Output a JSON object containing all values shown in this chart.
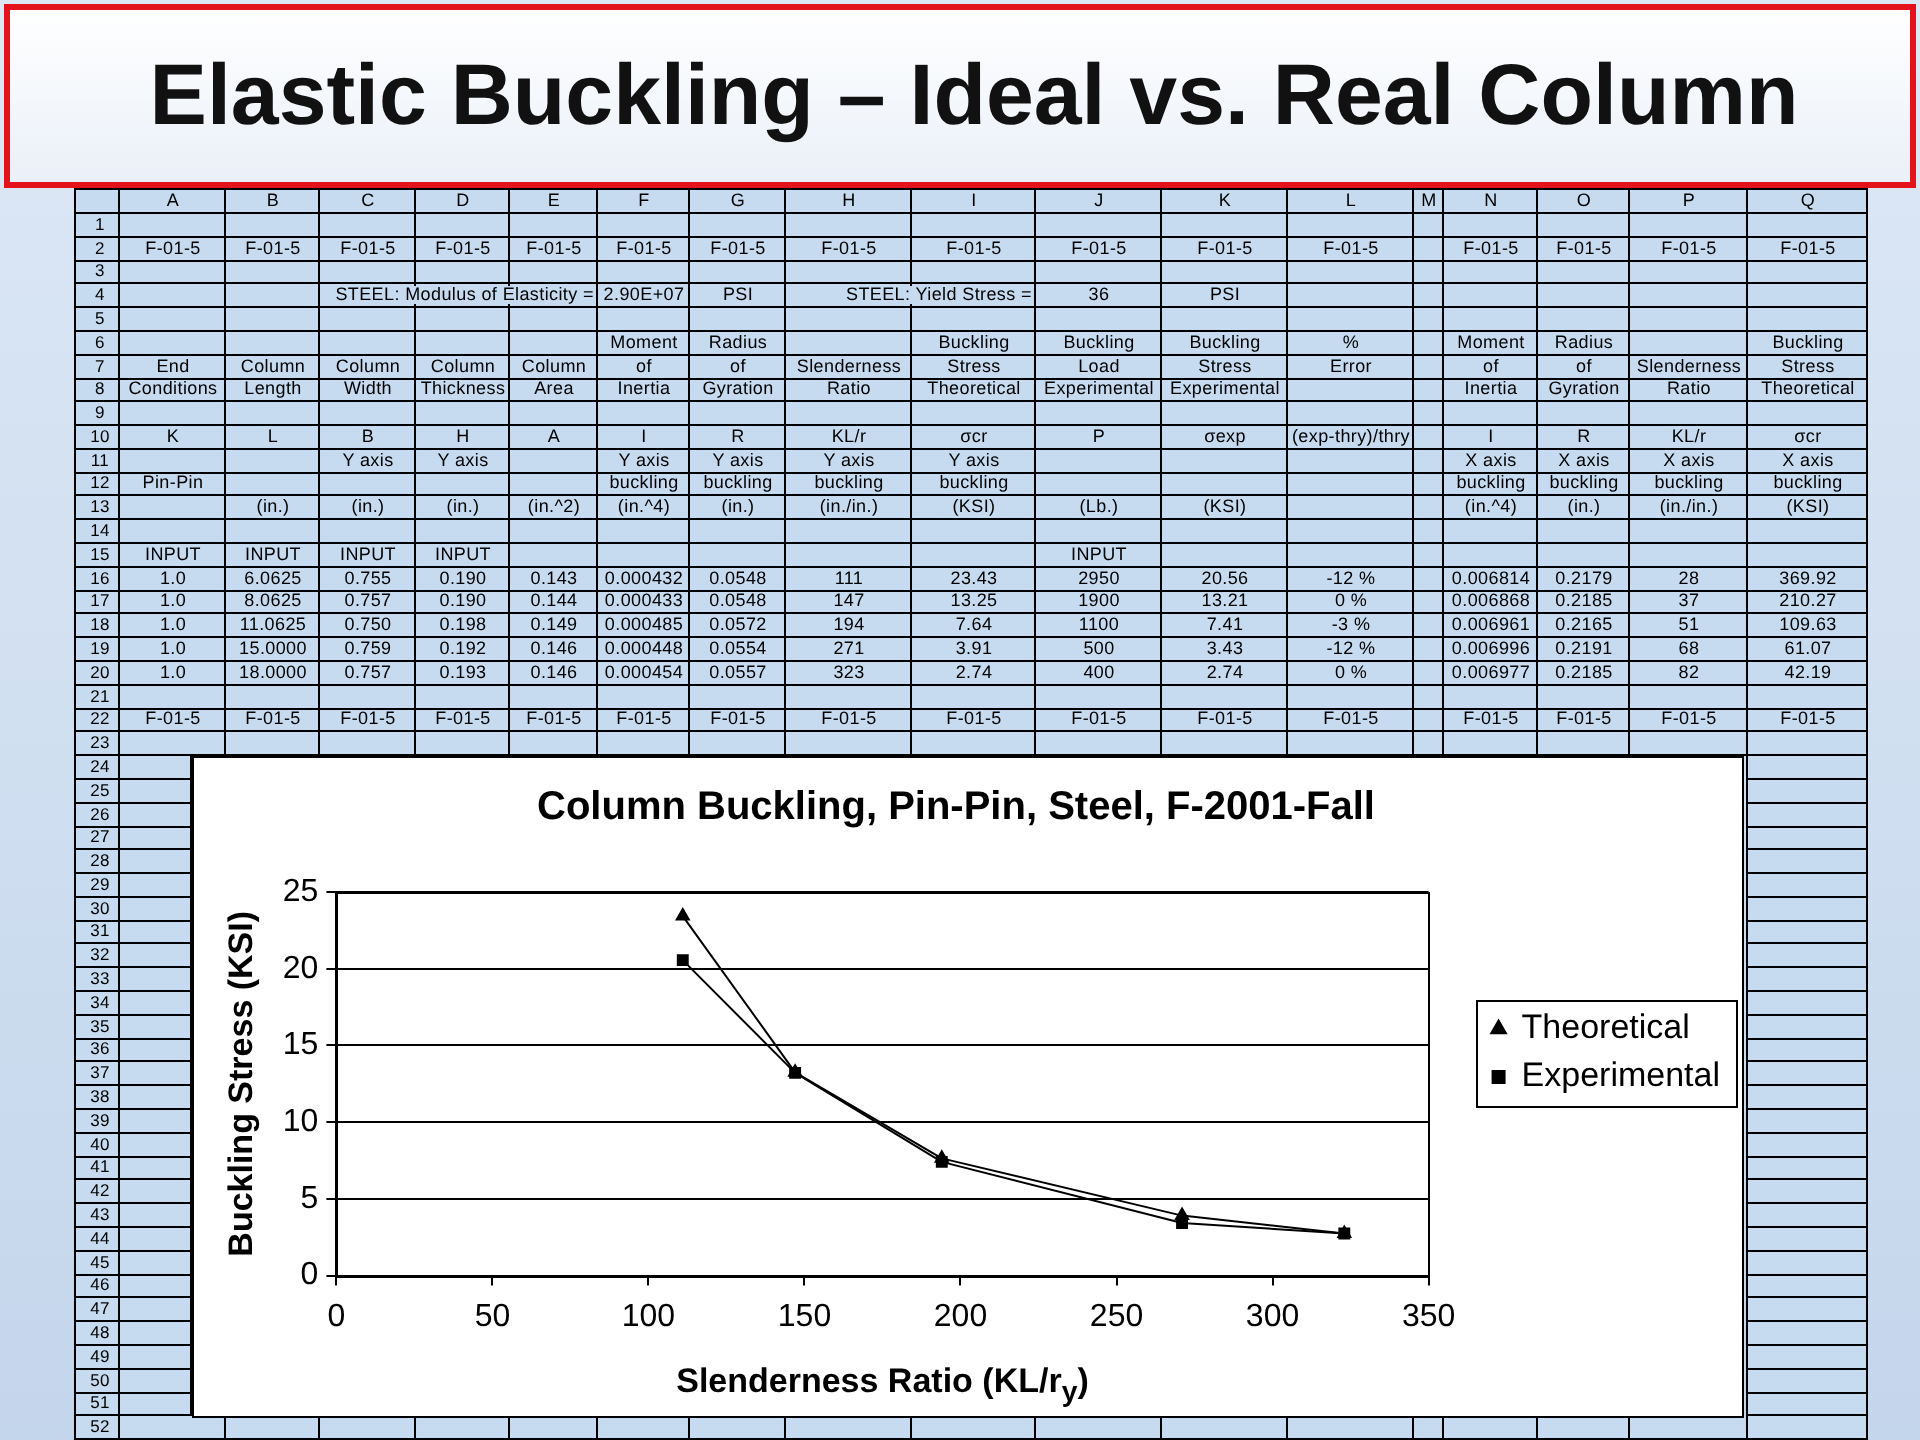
{
  "chart_data": [
    {
      "type": "other",
      "title": "Elastic Buckling – Ideal vs. Real Column",
      "categories": [
        null,
        "A",
        "B",
        "C",
        "D",
        "E",
        "F",
        "G",
        "H",
        "I",
        "J",
        "K",
        "L",
        "M",
        "N",
        "O",
        "P",
        "Q"
      ],
      "cell_labels": [
        [
          "1",
          null,
          null,
          null,
          null,
          null,
          null,
          null,
          null,
          null,
          null,
          null,
          null,
          null,
          null,
          null,
          null,
          null
        ],
        [
          "2",
          "F-01-5",
          "F-01-5",
          "F-01-5",
          "F-01-5",
          "F-01-5",
          "F-01-5",
          "F-01-5",
          "F-01-5",
          "F-01-5",
          "F-01-5",
          "F-01-5",
          "F-01-5",
          null,
          "F-01-5",
          "F-01-5",
          "F-01-5",
          "F-01-5"
        ],
        [
          "3",
          null,
          null,
          null,
          null,
          null,
          null,
          null,
          null,
          null,
          null,
          null,
          null,
          null,
          null,
          null,
          null,
          null
        ],
        [
          "4",
          null,
          null,
          null,
          null,
          "STEEL: Modulus of Elasticity =",
          "2.90E+07",
          "PSI",
          null,
          "STEEL: Yield Stress =",
          "36",
          "PSI",
          null,
          null,
          null,
          null,
          null,
          null
        ],
        [
          "5",
          null,
          null,
          null,
          null,
          null,
          null,
          null,
          null,
          null,
          null,
          null,
          null,
          null,
          null,
          null,
          null,
          null
        ],
        [
          "6",
          null,
          null,
          null,
          null,
          null,
          "Moment",
          "Radius",
          null,
          "Buckling",
          "Buckling",
          "Buckling",
          "%",
          null,
          "Moment",
          "Radius",
          null,
          "Buckling"
        ],
        [
          "7",
          "End",
          "Column",
          "Column",
          "Column",
          "Column",
          "of",
          "of",
          "Slenderness",
          "Stress",
          "Load",
          "Stress",
          "Error",
          null,
          "of",
          "of",
          "Slenderness",
          "Stress"
        ],
        [
          "8",
          "Conditions",
          "Length",
          "Width",
          "Thickness",
          "Area",
          "Inertia",
          "Gyration",
          "Ratio",
          "Theoretical",
          "Experimental",
          "Experimental",
          null,
          null,
          "Inertia",
          "Gyration",
          "Ratio",
          "Theoretical"
        ],
        [
          "9",
          null,
          null,
          null,
          null,
          null,
          null,
          null,
          null,
          null,
          null,
          null,
          null,
          null,
          null,
          null,
          null,
          null
        ],
        [
          "10",
          "K",
          "L",
          "B",
          "H",
          "A",
          "I",
          "R",
          "KL/r",
          "σcr",
          "P",
          "σexp",
          "(exp-thry)/thry",
          null,
          "I",
          "R",
          "KL/r",
          "σcr"
        ],
        [
          "11",
          null,
          null,
          "Y axis",
          "Y axis",
          null,
          "Y axis",
          "Y axis",
          "Y axis",
          "Y axis",
          null,
          null,
          null,
          null,
          "X axis",
          "X axis",
          "X axis",
          "X axis"
        ],
        [
          "12",
          "Pin-Pin",
          null,
          null,
          null,
          null,
          "buckling",
          "buckling",
          "buckling",
          "buckling",
          null,
          null,
          null,
          null,
          "buckling",
          "buckling",
          "buckling",
          "buckling"
        ],
        [
          "13",
          null,
          "(in.)",
          "(in.)",
          "(in.)",
          "(in.^2)",
          "(in.^4)",
          "(in.)",
          "(in./in.)",
          "(KSI)",
          "(Lb.)",
          "(KSI)",
          null,
          null,
          "(in.^4)",
          "(in.)",
          "(in./in.)",
          "(KSI)"
        ],
        [
          "14",
          null,
          null,
          null,
          null,
          null,
          null,
          null,
          null,
          null,
          null,
          null,
          null,
          null,
          null,
          null,
          null,
          null
        ],
        [
          "15",
          "INPUT",
          "INPUT",
          "INPUT",
          "INPUT",
          null,
          null,
          null,
          null,
          null,
          "INPUT",
          null,
          null,
          null,
          null,
          null,
          null,
          null
        ],
        [
          "16",
          "1.0",
          "6.0625",
          "0.755",
          "0.190",
          "0.143",
          "0.000432",
          "0.0548",
          "111",
          "23.43",
          "2950",
          "20.56",
          "-12 %",
          null,
          "0.006814",
          "0.2179",
          "28",
          "369.92"
        ],
        [
          "17",
          "1.0",
          "8.0625",
          "0.757",
          "0.190",
          "0.144",
          "0.000433",
          "0.0548",
          "147",
          "13.25",
          "1900",
          "13.21",
          "0 %",
          null,
          "0.006868",
          "0.2185",
          "37",
          "210.27"
        ],
        [
          "18",
          "1.0",
          "11.0625",
          "0.750",
          "0.198",
          "0.149",
          "0.000485",
          "0.0572",
          "194",
          "7.64",
          "1100",
          "7.41",
          "-3 %",
          null,
          "0.006961",
          "0.2165",
          "51",
          "109.63"
        ],
        [
          "19",
          "1.0",
          "15.0000",
          "0.759",
          "0.192",
          "0.146",
          "0.000448",
          "0.0554",
          "271",
          "3.91",
          "500",
          "3.43",
          "-12 %",
          null,
          "0.006996",
          "0.2191",
          "68",
          "61.07"
        ],
        [
          "20",
          "1.0",
          "18.0000",
          "0.757",
          "0.193",
          "0.146",
          "0.000454",
          "0.0557",
          "323",
          "2.74",
          "400",
          "2.74",
          "0 %",
          null,
          "0.006977",
          "0.2185",
          "82",
          "42.19"
        ],
        [
          "21",
          null,
          null,
          null,
          null,
          null,
          null,
          null,
          null,
          null,
          null,
          null,
          null,
          null,
          null,
          null,
          null,
          null
        ],
        [
          "22",
          "F-01-5",
          "F-01-5",
          "F-01-5",
          "F-01-5",
          "F-01-5",
          "F-01-5",
          "F-01-5",
          "F-01-5",
          "F-01-5",
          "F-01-5",
          "F-01-5",
          "F-01-5",
          null,
          "F-01-5",
          "F-01-5",
          "F-01-5",
          "F-01-5"
        ],
        [
          "23",
          null,
          null,
          null,
          null,
          null,
          null,
          null,
          null,
          null,
          null,
          null,
          null,
          null,
          null,
          null,
          null,
          null
        ],
        [
          "24",
          null,
          null,
          null,
          null,
          null,
          null,
          null,
          null,
          null,
          null,
          null,
          null,
          null,
          null,
          null,
          null,
          null
        ],
        [
          "25",
          null,
          null,
          null,
          null,
          null,
          null,
          null,
          null,
          null,
          null,
          null,
          null,
          null,
          null,
          null,
          null,
          null
        ],
        [
          "26",
          null,
          null,
          null,
          null,
          null,
          null,
          null,
          null,
          null,
          null,
          null,
          null,
          null,
          null,
          null,
          null,
          null
        ],
        [
          "27",
          null,
          null,
          null,
          null,
          null,
          null,
          null,
          null,
          null,
          null,
          null,
          null,
          null,
          null,
          null,
          null,
          null
        ],
        [
          "28",
          null,
          null,
          null,
          null,
          null,
          null,
          null,
          null,
          null,
          null,
          null,
          null,
          null,
          null,
          null,
          null,
          null
        ],
        [
          "29",
          null,
          null,
          null,
          null,
          null,
          null,
          null,
          null,
          null,
          null,
          null,
          null,
          null,
          null,
          null,
          null,
          null
        ],
        [
          "30",
          null,
          null,
          null,
          null,
          null,
          null,
          null,
          null,
          null,
          null,
          null,
          null,
          null,
          null,
          null,
          null,
          null
        ],
        [
          "31",
          null,
          null,
          null,
          null,
          null,
          null,
          null,
          null,
          null,
          null,
          null,
          null,
          null,
          null,
          null,
          null,
          null
        ],
        [
          "32",
          null,
          null,
          null,
          null,
          null,
          null,
          null,
          null,
          null,
          null,
          null,
          null,
          null,
          null,
          null,
          null,
          null
        ],
        [
          "33",
          null,
          null,
          null,
          null,
          null,
          null,
          null,
          null,
          null,
          null,
          null,
          null,
          null,
          null,
          null,
          null,
          null
        ],
        [
          "34",
          null,
          null,
          null,
          null,
          null,
          null,
          null,
          null,
          null,
          null,
          null,
          null,
          null,
          null,
          null,
          null,
          null
        ],
        [
          "35",
          null,
          null,
          null,
          null,
          null,
          null,
          null,
          null,
          null,
          null,
          null,
          null,
          null,
          null,
          null,
          null,
          null
        ],
        [
          "36",
          null,
          null,
          null,
          null,
          null,
          null,
          null,
          null,
          null,
          null,
          null,
          null,
          null,
          null,
          null,
          null,
          null
        ],
        [
          "37",
          null,
          null,
          null,
          null,
          null,
          null,
          null,
          null,
          null,
          null,
          null,
          null,
          null,
          null,
          null,
          null,
          null
        ],
        [
          "38",
          null,
          null,
          null,
          null,
          null,
          null,
          null,
          null,
          null,
          null,
          null,
          null,
          null,
          null,
          null,
          null,
          null
        ],
        [
          "39",
          null,
          null,
          null,
          null,
          null,
          null,
          null,
          null,
          null,
          null,
          null,
          null,
          null,
          null,
          null,
          null,
          null
        ],
        [
          "40",
          null,
          null,
          null,
          null,
          null,
          null,
          null,
          null,
          null,
          null,
          null,
          null,
          null,
          null,
          null,
          null,
          null
        ],
        [
          "41",
          null,
          null,
          null,
          null,
          null,
          null,
          null,
          null,
          null,
          null,
          null,
          null,
          null,
          null,
          null,
          null,
          null
        ],
        [
          "42",
          null,
          null,
          null,
          null,
          null,
          null,
          null,
          null,
          null,
          null,
          null,
          null,
          null,
          null,
          null,
          null,
          null
        ],
        [
          "43",
          null,
          null,
          null,
          null,
          null,
          null,
          null,
          null,
          null,
          null,
          null,
          null,
          null,
          null,
          null,
          null,
          null
        ],
        [
          "44",
          null,
          null,
          null,
          null,
          null,
          null,
          null,
          null,
          null,
          null,
          null,
          null,
          null,
          null,
          null,
          null,
          null
        ],
        [
          "45",
          null,
          null,
          null,
          null,
          null,
          null,
          null,
          null,
          null,
          null,
          null,
          null,
          null,
          null,
          null,
          null,
          null
        ],
        [
          "46",
          null,
          null,
          null,
          null,
          null,
          null,
          null,
          null,
          null,
          null,
          null,
          null,
          null,
          null,
          null,
          null,
          null
        ],
        [
          "47",
          null,
          null,
          null,
          null,
          null,
          null,
          null,
          null,
          null,
          null,
          null,
          null,
          null,
          null,
          null,
          null,
          null
        ],
        [
          "48",
          null,
          null,
          null,
          null,
          null,
          null,
          null,
          null,
          null,
          null,
          null,
          null,
          null,
          null,
          null,
          null,
          null
        ],
        [
          "49",
          null,
          null,
          null,
          null,
          null,
          null,
          null,
          null,
          null,
          null,
          null,
          null,
          null,
          null,
          null,
          null,
          null
        ],
        [
          "50",
          null,
          null,
          null,
          null,
          null,
          null,
          null,
          null,
          null,
          null,
          null,
          null,
          null,
          null,
          null,
          null,
          null
        ],
        [
          "51",
          null,
          null,
          null,
          null,
          null,
          null,
          null,
          null,
          null,
          null,
          null,
          null,
          null,
          null,
          null,
          null,
          null
        ],
        [
          "52",
          null,
          null,
          null,
          null,
          null,
          null,
          null,
          null,
          null,
          null,
          null,
          null,
          null,
          null,
          null,
          null,
          null
        ]
      ]
    },
    {
      "type": "line",
      "title": "Column Buckling, Pin-Pin, Steel, F-2001-Fall",
      "xlabel": "Slenderness Ratio (KL/r$_{y}$)",
      "ylabel": "Buckling Stress (KSI)",
      "x": [
        111,
        147,
        194,
        271,
        323
      ],
      "series": [
        {
          "name": "Theoretical",
          "color": "#000000",
          "marker": "triangle",
          "values": [
            23.43,
            13.25,
            7.64,
            3.91,
            2.74
          ]
        },
        {
          "name": "Experimental",
          "color": "#000000",
          "marker": "square",
          "values": [
            20.56,
            13.21,
            7.41,
            3.43,
            2.74
          ]
        }
      ],
      "xlim": [
        0,
        350
      ],
      "xticks": [
        0,
        50,
        100,
        150,
        200,
        250,
        300,
        350
      ],
      "ylim": [
        0,
        25
      ],
      "yticks": [
        0,
        5,
        10,
        15,
        20,
        25
      ],
      "grid": "y",
      "legend": "right",
      "line_style": "solid"
    }
  ]
}
